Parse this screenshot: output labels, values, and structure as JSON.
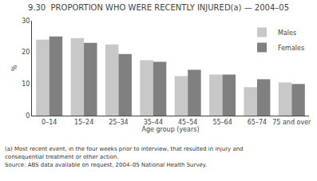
{
  "chart_data": {
    "type": "bar",
    "title": "9.30  PROPORTION WHO WERE RECENTLY INJURED(a) — 2004–05",
    "categories": [
      "0–14",
      "15–24",
      "25–34",
      "35–44",
      "45–54",
      "55–64",
      "65–74",
      "75 and over"
    ],
    "series": [
      {
        "name": "Males",
        "color": "#c8c8c8",
        "values": [
          24.0,
          24.5,
          22.5,
          17.5,
          12.5,
          13.0,
          9.0,
          10.5
        ]
      },
      {
        "name": "Females",
        "color": "#808080",
        "values": [
          25.0,
          23.0,
          19.5,
          17.0,
          14.5,
          13.0,
          11.5,
          10.0
        ]
      }
    ],
    "xlabel": "Age group (years)",
    "ylabel": "%",
    "ylim": [
      0,
      30
    ],
    "yticks": [
      0,
      10,
      20,
      30
    ],
    "grid": false,
    "legend": "upper right",
    "annotations": [
      "(a) Most recent event, in the four weeks prior to interview, that resulted in injury and",
      "consequential treatment or other action.",
      "Source: ABS data available on request, 2004–05 National Health Survey."
    ]
  }
}
